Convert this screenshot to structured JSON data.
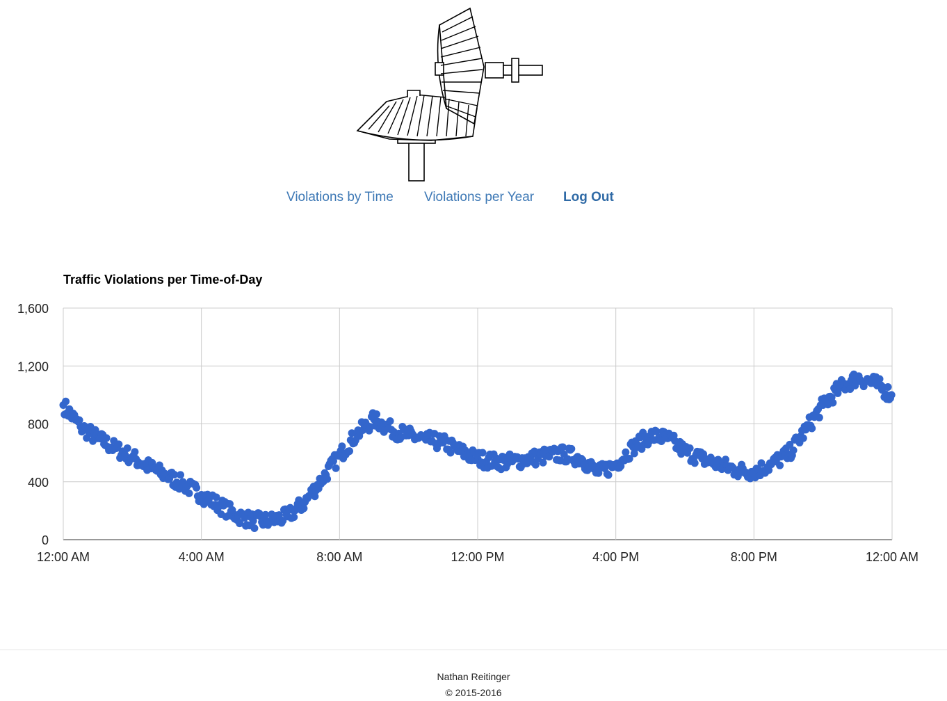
{
  "nav": {
    "items": [
      {
        "label": "Violations by Time",
        "bold": false
      },
      {
        "label": "Violations per Year",
        "bold": false
      },
      {
        "label": "Log Out",
        "bold": true
      }
    ]
  },
  "footer": {
    "author": "Nathan Reitinger",
    "copyright": "© 2015-2016"
  },
  "colors": {
    "link": "#3d78b5",
    "points": "#3366cc",
    "grid": "#cccccc"
  },
  "chart_data": {
    "type": "scatter",
    "title": "Traffic Violations per Time-of-Day",
    "xlabel": "",
    "ylabel": "",
    "x_unit": "time of day",
    "x_range": [
      "12:00 AM",
      "12:00 AM"
    ],
    "ylim": [
      0,
      1600
    ],
    "x_ticks": [
      "12:00 AM",
      "4:00 AM",
      "8:00 AM",
      "12:00 PM",
      "4:00 PM",
      "8:00 PM",
      "12:00 AM"
    ],
    "y_ticks": [
      "0",
      "400",
      "800",
      "1,200",
      "1,600"
    ],
    "grid": true,
    "legend": "none",
    "series": [
      {
        "x": [
          "12:00 AM",
          "12:30 AM",
          "1:00 AM",
          "1:30 AM",
          "2:00 AM",
          "2:30 AM",
          "3:00 AM",
          "3:30 AM",
          "4:00 AM",
          "4:30 AM",
          "5:00 AM",
          "5:30 AM",
          "6:00 AM",
          "6:30 AM",
          "7:00 AM",
          "7:30 AM",
          "8:00 AM",
          "8:30 AM",
          "9:00 AM",
          "9:30 AM",
          "10:00 AM",
          "10:30 AM",
          "11:00 AM",
          "11:30 AM",
          "12:00 PM",
          "12:30 PM",
          "1:00 PM",
          "1:30 PM",
          "2:00 PM",
          "2:30 PM",
          "3:00 PM",
          "3:30 PM",
          "4:00 PM",
          "4:30 PM",
          "5:00 PM",
          "5:30 PM",
          "6:00 PM",
          "6:30 PM",
          "7:00 PM",
          "7:30 PM",
          "8:00 PM",
          "8:30 PM",
          "9:00 PM",
          "9:30 PM",
          "10:00 PM",
          "10:30 PM",
          "11:00 PM",
          "11:30 PM",
          "11:59 PM"
        ],
        "values": [
          930,
          780,
          700,
          630,
          570,
          500,
          440,
          380,
          310,
          240,
          170,
          130,
          130,
          160,
          260,
          420,
          580,
          730,
          830,
          760,
          720,
          690,
          670,
          610,
          560,
          540,
          540,
          560,
          580,
          590,
          560,
          460,
          520,
          640,
          720,
          700,
          610,
          560,
          520,
          480,
          470,
          520,
          590,
          760,
          930,
          1050,
          1120,
          1080,
          1000
        ]
      }
    ]
  }
}
